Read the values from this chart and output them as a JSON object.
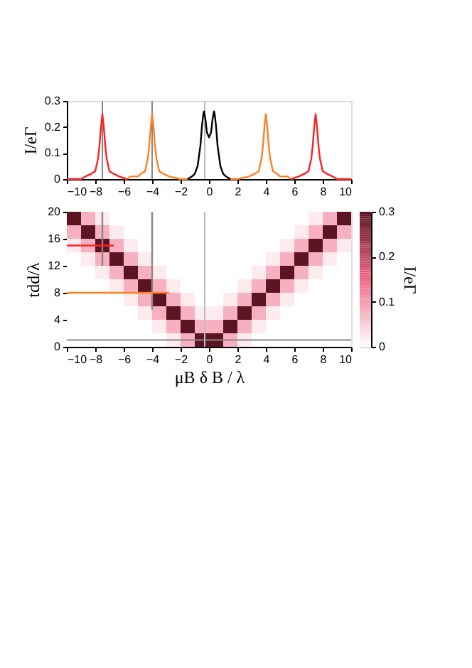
{
  "chart_data": [
    {
      "type": "line",
      "ylabel": "I/eΓ",
      "xlim": [
        -10,
        10
      ],
      "xticks": [
        -10,
        -8,
        -6,
        -4,
        -2,
        0,
        2,
        4,
        6,
        8,
        10
      ],
      "ylim": [
        0,
        0.3
      ],
      "yticks": [
        0,
        0.1,
        0.2,
        0.3
      ],
      "ref_lines": [
        {
          "axis": "x",
          "value": -7.5,
          "color": "#888888"
        },
        {
          "axis": "x",
          "value": -4,
          "color": "#888888"
        },
        {
          "axis": "x",
          "value": -0.3,
          "color": "#bbbbbb"
        }
      ],
      "series": [
        {
          "color": "#ff2020",
          "x": [
            -10,
            -9.5,
            -9,
            -8.7,
            -8.3,
            -8,
            -7.8,
            -7.7,
            -7.6,
            -7.5,
            -7.4,
            -7.3,
            -7.2,
            -7,
            -6.7,
            -6.3,
            -5.8
          ],
          "values": [
            0,
            0,
            0,
            0.01,
            0.02,
            0.03,
            0.08,
            0.13,
            0.2,
            0.25,
            0.2,
            0.13,
            0.08,
            0.03,
            0.02,
            0.01,
            0
          ]
        },
        {
          "color": "#ff2020",
          "x": [
            5.8,
            6.3,
            6.7,
            7,
            7.2,
            7.3,
            7.4,
            7.5,
            7.6,
            7.7,
            7.8,
            8,
            8.3,
            8.7,
            9,
            9.5,
            10
          ],
          "values": [
            0,
            0.01,
            0.02,
            0.03,
            0.08,
            0.13,
            0.2,
            0.25,
            0.2,
            0.13,
            0.08,
            0.03,
            0.02,
            0.01,
            0,
            0,
            0
          ]
        },
        {
          "color": "#ff8020",
          "x": [
            -5.8,
            -5.5,
            -5,
            -4.8,
            -4.5,
            -4.3,
            -4.2,
            -4.1,
            -4,
            -3.9,
            -3.8,
            -3.7,
            -3.5,
            -3.2,
            -2.8,
            -2,
            -1.5
          ],
          "values": [
            0,
            0.01,
            0.01,
            0.02,
            0.03,
            0.08,
            0.13,
            0.2,
            0.25,
            0.2,
            0.13,
            0.08,
            0.03,
            0.02,
            0.01,
            0,
            0
          ]
        },
        {
          "color": "#ff8020",
          "x": [
            1.5,
            2,
            2.8,
            3.2,
            3.5,
            3.7,
            3.8,
            3.9,
            4,
            4.1,
            4.2,
            4.3,
            4.5,
            4.8,
            5,
            5.5,
            5.8
          ],
          "values": [
            0,
            0,
            0.01,
            0.02,
            0.03,
            0.08,
            0.13,
            0.2,
            0.25,
            0.2,
            0.13,
            0.08,
            0.03,
            0.02,
            0.01,
            0.01,
            0
          ]
        },
        {
          "color": "#000000",
          "x": [
            -1.5,
            -1.2,
            -1,
            -0.8,
            -0.6,
            -0.5,
            -0.4,
            -0.35,
            -0.25,
            -0.15,
            0,
            0.15,
            0.25,
            0.35,
            0.4,
            0.5,
            0.6,
            0.8,
            1,
            1.2,
            1.5
          ],
          "values": [
            0,
            0.01,
            0.02,
            0.05,
            0.13,
            0.2,
            0.25,
            0.26,
            0.23,
            0.18,
            0.16,
            0.18,
            0.23,
            0.26,
            0.25,
            0.2,
            0.13,
            0.05,
            0.02,
            0.01,
            0
          ]
        }
      ]
    },
    {
      "type": "heatmap",
      "xlabel": "μB δ B / λ",
      "ylabel": "tdd/λ",
      "clabel": "I/eΓ",
      "xlim": [
        -10,
        10
      ],
      "xticks": [
        -10,
        -8,
        -6,
        -4,
        -2,
        0,
        2,
        4,
        6,
        8,
        10
      ],
      "ylim": [
        0,
        20
      ],
      "yticks": [
        0,
        4,
        8,
        12,
        16,
        20
      ],
      "clim": [
        0,
        0.3
      ],
      "cticks": [
        0,
        0.1,
        0.2,
        0.3
      ],
      "x": [
        -9.5,
        -8.5,
        -7.5,
        -6.5,
        -5.5,
        -4.5,
        -3.5,
        -2.5,
        -1.5,
        -0.5,
        0.5,
        1.5,
        2.5,
        3.5,
        4.5,
        5.5,
        6.5,
        7.5,
        8.5,
        9.5
      ],
      "y": [
        19,
        17,
        15,
        13,
        11,
        9,
        7,
        5,
        3,
        1
      ],
      "cells": [
        [
          0.3,
          0.08,
          0.02,
          0,
          0,
          0,
          0,
          0,
          0,
          0,
          0,
          0,
          0,
          0,
          0,
          0,
          0,
          0.02,
          0.08,
          0.3
        ],
        [
          0.08,
          0.3,
          0.08,
          0.02,
          0,
          0,
          0,
          0,
          0,
          0,
          0,
          0,
          0,
          0,
          0,
          0,
          0.02,
          0.08,
          0.3,
          0.08
        ],
        [
          0.02,
          0.08,
          0.3,
          0.08,
          0.02,
          0,
          0,
          0,
          0,
          0,
          0,
          0,
          0,
          0,
          0,
          0.02,
          0.08,
          0.3,
          0.08,
          0.02
        ],
        [
          0,
          0.02,
          0.08,
          0.3,
          0.08,
          0.02,
          0,
          0,
          0,
          0,
          0,
          0,
          0,
          0,
          0.02,
          0.08,
          0.3,
          0.08,
          0.02,
          0
        ],
        [
          0,
          0,
          0.02,
          0.08,
          0.3,
          0.08,
          0.02,
          0,
          0,
          0,
          0,
          0,
          0,
          0.02,
          0.08,
          0.3,
          0.08,
          0.02,
          0,
          0
        ],
        [
          0,
          0,
          0,
          0.02,
          0.08,
          0.3,
          0.08,
          0.02,
          0,
          0,
          0,
          0,
          0.02,
          0.08,
          0.3,
          0.08,
          0.02,
          0,
          0,
          0
        ],
        [
          0,
          0,
          0,
          0,
          0.02,
          0.08,
          0.3,
          0.08,
          0.02,
          0,
          0,
          0.02,
          0.08,
          0.3,
          0.08,
          0.02,
          0,
          0,
          0,
          0
        ],
        [
          0,
          0,
          0,
          0,
          0,
          0.02,
          0.08,
          0.3,
          0.08,
          0.02,
          0.02,
          0.08,
          0.3,
          0.08,
          0.02,
          0,
          0,
          0,
          0,
          0
        ],
        [
          0,
          0,
          0,
          0,
          0,
          0,
          0.02,
          0.08,
          0.3,
          0.08,
          0.08,
          0.3,
          0.08,
          0.02,
          0,
          0,
          0,
          0,
          0,
          0
        ],
        [
          0,
          0,
          0,
          0,
          0,
          0,
          0,
          0.02,
          0.08,
          0.3,
          0.3,
          0.08,
          0.02,
          0,
          0,
          0,
          0,
          0,
          0,
          0
        ]
      ],
      "ref_lines": [
        {
          "axis": "y",
          "value": 1,
          "color": "#888888"
        },
        {
          "axis": "x",
          "value": -0.3,
          "color": "#bbbbbb"
        }
      ],
      "series": [
        {
          "type": "line",
          "color": "#888888",
          "x": [
            -7.5,
            -7.5
          ],
          "values": [
            12,
            20
          ]
        },
        {
          "type": "line",
          "color": "#888888",
          "x": [
            -4,
            -4
          ],
          "values": [
            5.5,
            20
          ]
        },
        {
          "type": "line",
          "color": "#ff2020",
          "x": [
            -10,
            -6.7
          ],
          "values": [
            15,
            15
          ]
        },
        {
          "type": "line",
          "color": "#ff8020",
          "x": [
            -10,
            -2.8
          ],
          "values": [
            8,
            8
          ]
        }
      ]
    }
  ]
}
